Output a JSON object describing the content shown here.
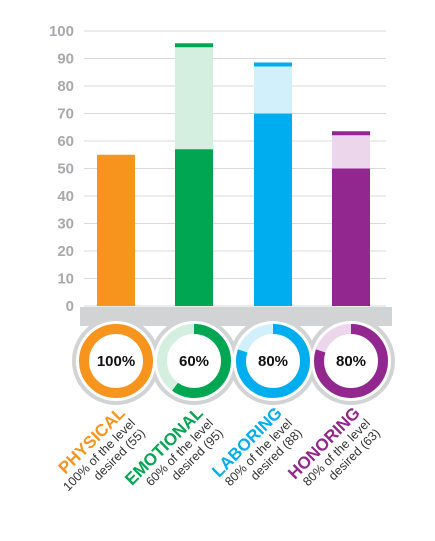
{
  "chart_data": {
    "type": "bar",
    "ylim": [
      0,
      100
    ],
    "yticks": [
      0,
      10,
      20,
      30,
      40,
      50,
      60,
      70,
      80,
      90,
      100
    ],
    "grid": true,
    "categories": [
      {
        "name": "PHYSICAL",
        "actual": 55,
        "desired": 55,
        "percent_label": "100%",
        "percent": 100,
        "line1": "100% of the level",
        "line2": "desired (55)",
        "color": "#f7941d",
        "light": "#fde7cc"
      },
      {
        "name": "EMOTIONAL",
        "actual": 57,
        "desired": 95,
        "percent_label": "60%",
        "percent": 60,
        "line1": "60% of the level",
        "line2": "desired (95)",
        "color": "#00a651",
        "light": "#d4efe0"
      },
      {
        "name": "LABORING",
        "actual": 70,
        "desired": 88,
        "percent_label": "80%",
        "percent": 80,
        "line1": "80% of the level",
        "line2": "desired (88)",
        "color": "#00aeef",
        "light": "#d1f0fc"
      },
      {
        "name": "HONORING",
        "actual": 50,
        "desired": 63,
        "percent_label": "80%",
        "percent": 80,
        "line1": "80% of the level",
        "line2": "desired (63)",
        "color": "#92278f",
        "light": "#ecd6ec"
      }
    ]
  }
}
